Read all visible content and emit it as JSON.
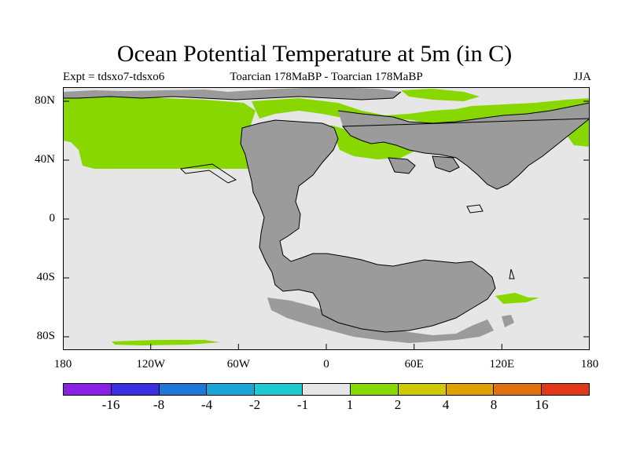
{
  "title": "Ocean Potential Temperature at 5m (in C)",
  "subtitle_left": "Expt = tdsxo7-tdsxo6",
  "subtitle_center": "Toarcian 178MaBP - Toarcian 178MaBP",
  "subtitle_right": "JJA",
  "y_ticks": [
    "80N",
    "40N",
    "0",
    "40S",
    "80S"
  ],
  "x_ticks": [
    "180",
    "120W",
    "60W",
    "0",
    "60E",
    "120E",
    "180"
  ],
  "colorbar": {
    "colors": [
      "#8a1fe6",
      "#3c2fe0",
      "#1f78d8",
      "#18a8d8",
      "#1ccbd0",
      "#e6e6e6",
      "#88d800",
      "#d0c800",
      "#e0a000",
      "#e07010",
      "#e03818"
    ],
    "labels": [
      "-16",
      "-8",
      "-4",
      "-2",
      "-1",
      "1",
      "2",
      "4",
      "8",
      "16"
    ]
  },
  "map_colors": {
    "ocean": "#e6e6e6",
    "land": "#9b9b9b",
    "warm": "#88d800",
    "frame": "#000000"
  }
}
